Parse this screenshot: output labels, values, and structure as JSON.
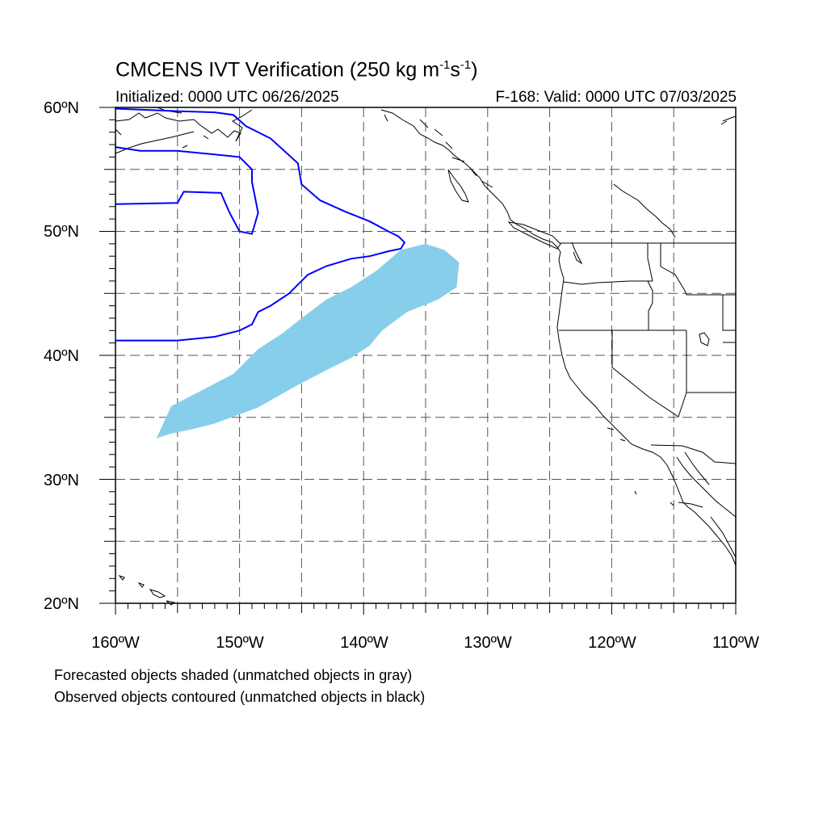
{
  "title": {
    "prefix": "CMCENS IVT Verification (250 kg m",
    "exp1": "-1",
    "mid": "s",
    "exp2": "-1",
    "suffix": ")"
  },
  "initialized": "Initialized: 0000 UTC 06/26/2025",
  "valid": "F-168: Valid: 0000 UTC 07/03/2025",
  "axes": {
    "lat_labels": [
      "60ºN",
      "50ºN",
      "40ºN",
      "30ºN",
      "20ºN"
    ],
    "lon_labels": [
      "160ºW",
      "150ºW",
      "140ºW",
      "130ºW",
      "120ºW",
      "110ºW"
    ]
  },
  "map": {
    "extent": {
      "lon": [
        -160,
        -110
      ],
      "lat": [
        20,
        60
      ]
    },
    "grid_lon": [
      -155,
      -150,
      -145,
      -140,
      -135,
      -130,
      -125,
      -120,
      -115
    ],
    "grid_lat": [
      25,
      30,
      35,
      40,
      45,
      50,
      55
    ],
    "colors": {
      "forecast_fill": "#87ceeb",
      "observed_contour": "#0000ff",
      "coast": "#000000",
      "grid": "#555555"
    }
  },
  "legend": {
    "line1": "Forecasted objects shaded (unmatched objects in gray)",
    "line2": "Observed objects contoured (unmatched objects in black)"
  },
  "chart_data": {
    "type": "map",
    "forecast_object": {
      "lon": [
        -156.7,
        -155.5,
        -153.0,
        -150.5,
        -148.5,
        -146.5,
        -145.0,
        -143.0,
        -141.0,
        -139.0,
        -137.0,
        -135.0,
        -133.5,
        -132.3,
        -132.5,
        -134.0,
        -136.5,
        -138.5,
        -139.5,
        -141.0,
        -143.0,
        -145.5,
        -148.5,
        -152.0,
        -154.0,
        -155.5,
        -156.7
      ],
      "lat": [
        33.3,
        35.9,
        37.2,
        38.5,
        40.5,
        41.8,
        43.0,
        44.5,
        45.5,
        46.8,
        48.5,
        49.0,
        48.5,
        47.5,
        45.5,
        44.5,
        43.5,
        42.0,
        40.8,
        39.8,
        38.8,
        37.5,
        35.8,
        34.5,
        34.0,
        33.7,
        33.3
      ]
    },
    "observed_contour": {
      "lon": [
        -160.0,
        -155.0,
        -152.0,
        -150.0,
        -149.0,
        -148.5,
        -147.5,
        -146.0,
        -145.5,
        -144.5,
        -143.0,
        -141.0,
        -139.5,
        -138.0,
        -137.0,
        -136.7,
        -137.2,
        -138.0,
        -139.5,
        -141.5,
        -143.5,
        -145.0,
        -145.3,
        -147.5,
        -149.5,
        -150.5,
        -152.0,
        -155.0,
        -160.0
      ],
      "lat": [
        41.2,
        41.2,
        41.5,
        42.0,
        42.5,
        43.5,
        44.0,
        45.0,
        45.5,
        46.5,
        47.2,
        47.8,
        48.0,
        48.4,
        48.6,
        49.1,
        49.6,
        50.0,
        50.8,
        51.6,
        52.5,
        53.8,
        55.5,
        57.5,
        58.5,
        59.4,
        59.6,
        59.7,
        59.9
      ],
      "inner_loop_lon": [
        -160.0,
        -155.0,
        -154.5,
        -151.5,
        -150.8,
        -150.0,
        -149.0,
        -148.5,
        -149.0,
        -149.0,
        -150.0,
        -152.0,
        -155.0,
        -158.0,
        -160.0
      ],
      "inner_loop_lat": [
        52.2,
        52.3,
        53.2,
        53.1,
        51.5,
        50.0,
        49.8,
        51.5,
        54.0,
        55.0,
        56.0,
        56.2,
        56.5,
        56.5,
        56.8
      ]
    }
  }
}
